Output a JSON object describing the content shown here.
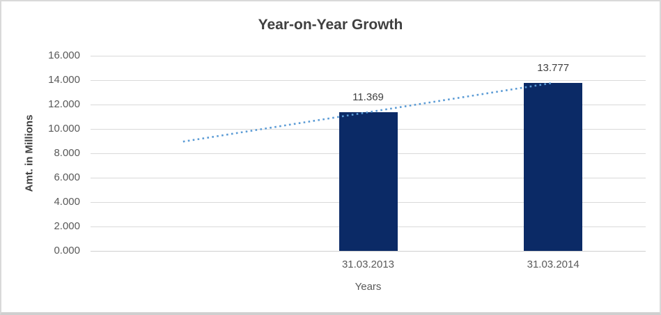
{
  "chart_data": {
    "type": "bar",
    "title": "Year-on-Year Growth",
    "xlabel": "Years",
    "ylabel": "Amt. in Millions",
    "categories": [
      "",
      "31.03.2013",
      "31.03.2014"
    ],
    "values": [
      null,
      11.369,
      13.777
    ],
    "data_labels": [
      "",
      "11.369",
      "13.777"
    ],
    "ylim": [
      0,
      16
    ],
    "ytick_step": 2,
    "yticks": [
      {
        "value": 0,
        "label": "0.000"
      },
      {
        "value": 2,
        "label": "2.000"
      },
      {
        "value": 4,
        "label": "4.000"
      },
      {
        "value": 6,
        "label": "6.000"
      },
      {
        "value": 8,
        "label": "8.000"
      },
      {
        "value": 10,
        "label": "10.000"
      },
      {
        "value": 12,
        "label": "12.000"
      },
      {
        "value": 14,
        "label": "14.000"
      },
      {
        "value": 16,
        "label": "16.000"
      }
    ],
    "grid": true,
    "legend": false,
    "bar_color": "#0B2A66",
    "trendline": {
      "style": "dotted",
      "color": "#5B9BD5",
      "start_category_index": 0,
      "end_category_index": 2,
      "start_value": 8.961,
      "end_value": 13.777
    },
    "colors": {
      "gridline": "#D9D9D9",
      "axis_text": "#595959",
      "title_text": "#404040",
      "frame_border": "#D9D9D9"
    }
  }
}
